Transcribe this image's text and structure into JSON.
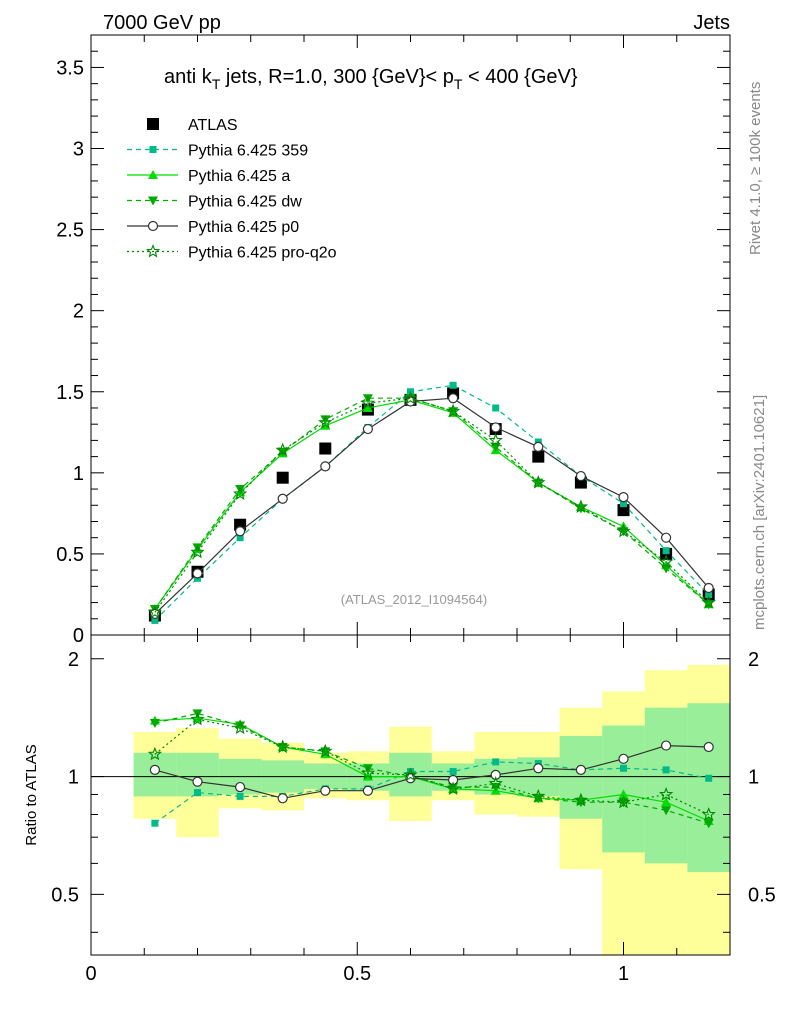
{
  "header": {
    "left_label": "7000 GeV pp",
    "right_label": "Jets"
  },
  "side_labels": {
    "rivet": "Rivet 4.1.0, ≥ 100k events",
    "mcplots": "mcplots.cern.ch [arXiv:2401.10621]"
  },
  "chart_data": [
    {
      "type": "line",
      "panel": "main",
      "title_parts": {
        "t1": "anti k",
        "t1_sub": "T",
        "t2": " jets, R=1.0,  300 {GeV}< p",
        "t2_sub": "T",
        "t3": " < 400 {GeV}"
      },
      "watermark": "(ATLAS_2012_I1094564)",
      "xlim": [
        0,
        1.2
      ],
      "ylim": [
        0,
        3.7
      ],
      "yticks": [
        "0",
        "0.5",
        "1",
        "1.5",
        "2",
        "2.5",
        "3",
        "3.5"
      ],
      "x": [
        0.12,
        0.2,
        0.28,
        0.36,
        0.44,
        0.52,
        0.6,
        0.68,
        0.76,
        0.84,
        0.92,
        1.0,
        1.08,
        1.16
      ],
      "series": [
        {
          "name": "ATLAS",
          "key": "atlas",
          "color": "#000000",
          "line": "none",
          "marker": "square",
          "values": [
            0.12,
            0.39,
            0.68,
            0.97,
            1.15,
            1.39,
            1.45,
            1.49,
            1.27,
            1.1,
            0.94,
            0.77,
            0.5,
            0.25
          ]
        },
        {
          "name": "Pythia 6.425 359",
          "key": "p359",
          "color": "#00bb88",
          "line": "dashed",
          "marker": "smallsquare",
          "values": [
            0.09,
            0.35,
            0.6,
            0.84,
            1.04,
            1.28,
            1.5,
            1.54,
            1.4,
            1.19,
            0.98,
            0.81,
            0.52,
            0.25
          ]
        },
        {
          "name": "Pythia 6.425 a",
          "key": "pa",
          "color": "#00dd00",
          "line": "solid",
          "marker": "triangle",
          "values": [
            0.16,
            0.53,
            0.88,
            1.12,
            1.29,
            1.4,
            1.45,
            1.37,
            1.14,
            0.94,
            0.79,
            0.67,
            0.43,
            0.19
          ]
        },
        {
          "name": "Pythia 6.425 dw",
          "key": "pdw",
          "color": "#00aa00",
          "line": "dashed",
          "marker": "invtriangle",
          "values": [
            0.16,
            0.54,
            0.9,
            1.13,
            1.33,
            1.46,
            1.46,
            1.38,
            1.16,
            0.94,
            0.78,
            0.64,
            0.41,
            0.19
          ]
        },
        {
          "name": "Pythia 6.425 p0",
          "key": "pp0",
          "color": "#333333",
          "line": "solid",
          "marker": "opencircle",
          "values": [
            0.13,
            0.38,
            0.64,
            0.84,
            1.04,
            1.27,
            1.44,
            1.46,
            1.28,
            1.16,
            0.98,
            0.85,
            0.6,
            0.29
          ]
        },
        {
          "name": "Pythia 6.425 pro-q2o",
          "key": "pq2o",
          "color": "#008800",
          "line": "dotted",
          "marker": "openstar",
          "values": [
            0.14,
            0.51,
            0.87,
            1.14,
            1.31,
            1.43,
            1.46,
            1.38,
            1.2,
            0.94,
            0.79,
            0.64,
            0.45,
            0.2
          ]
        }
      ]
    },
    {
      "type": "line",
      "panel": "ratio",
      "ylabel": "Ratio to ATLAS",
      "xlim": [
        0,
        1.2
      ],
      "ylim": [
        0.35,
        2.3
      ],
      "yscale": "log",
      "yticks_left": [
        "0.5",
        "1",
        "2"
      ],
      "yticks_right": [
        "0.5",
        "1",
        "2"
      ],
      "xticks": [
        "0",
        "0.5",
        "1"
      ],
      "bins": [
        [
          0.08,
          0.16
        ],
        [
          0.16,
          0.24
        ],
        [
          0.24,
          0.32
        ],
        [
          0.32,
          0.4
        ],
        [
          0.4,
          0.48
        ],
        [
          0.48,
          0.56
        ],
        [
          0.56,
          0.64
        ],
        [
          0.64,
          0.72
        ],
        [
          0.72,
          0.8
        ],
        [
          0.8,
          0.88
        ],
        [
          0.88,
          0.96
        ],
        [
          0.96,
          1.04
        ],
        [
          1.04,
          1.12
        ],
        [
          1.12,
          1.2
        ]
      ],
      "band_yellow": [
        [
          0.78,
          1.3
        ],
        [
          0.7,
          1.33
        ],
        [
          0.83,
          1.25
        ],
        [
          0.82,
          1.22
        ],
        [
          0.88,
          1.15
        ],
        [
          0.87,
          1.16
        ],
        [
          0.77,
          1.34
        ],
        [
          0.87,
          1.16
        ],
        [
          0.8,
          1.3
        ],
        [
          0.79,
          1.3
        ],
        [
          0.58,
          1.5
        ],
        [
          0.35,
          1.65
        ],
        [
          0.35,
          1.87
        ],
        [
          0.35,
          1.93
        ]
      ],
      "band_green": [
        [
          0.89,
          1.15
        ],
        [
          0.89,
          1.15
        ],
        [
          0.9,
          1.11
        ],
        [
          0.91,
          1.1
        ],
        [
          0.93,
          1.08
        ],
        [
          0.92,
          1.08
        ],
        [
          0.89,
          1.15
        ],
        [
          0.92,
          1.08
        ],
        [
          0.9,
          1.11
        ],
        [
          0.89,
          1.12
        ],
        [
          0.78,
          1.27
        ],
        [
          0.64,
          1.35
        ],
        [
          0.6,
          1.5
        ],
        [
          0.57,
          1.54
        ]
      ],
      "reference": 1,
      "series": [
        {
          "key": "p359",
          "values": [
            0.76,
            0.91,
            0.89,
            0.89,
            0.93,
            0.93,
            1.03,
            1.03,
            1.09,
            1.08,
            1.04,
            1.05,
            1.04,
            0.99
          ]
        },
        {
          "key": "pa",
          "values": [
            1.39,
            1.41,
            1.36,
            1.19,
            1.14,
            1.0,
            1.0,
            0.93,
            0.92,
            0.88,
            0.87,
            0.9,
            0.86,
            0.77
          ]
        },
        {
          "key": "pdw",
          "values": [
            1.37,
            1.45,
            1.35,
            1.19,
            1.16,
            1.05,
            1.0,
            0.94,
            0.94,
            0.88,
            0.86,
            0.86,
            0.82,
            0.76
          ]
        },
        {
          "key": "pp0",
          "values": [
            1.04,
            0.97,
            0.94,
            0.88,
            0.92,
            0.92,
            0.99,
            0.98,
            1.01,
            1.05,
            1.04,
            1.11,
            1.2,
            1.19
          ]
        },
        {
          "key": "pq2o",
          "values": [
            1.14,
            1.4,
            1.33,
            1.19,
            1.16,
            1.02,
            1.01,
            0.93,
            0.96,
            0.89,
            0.87,
            0.86,
            0.9,
            0.8
          ]
        }
      ]
    }
  ]
}
